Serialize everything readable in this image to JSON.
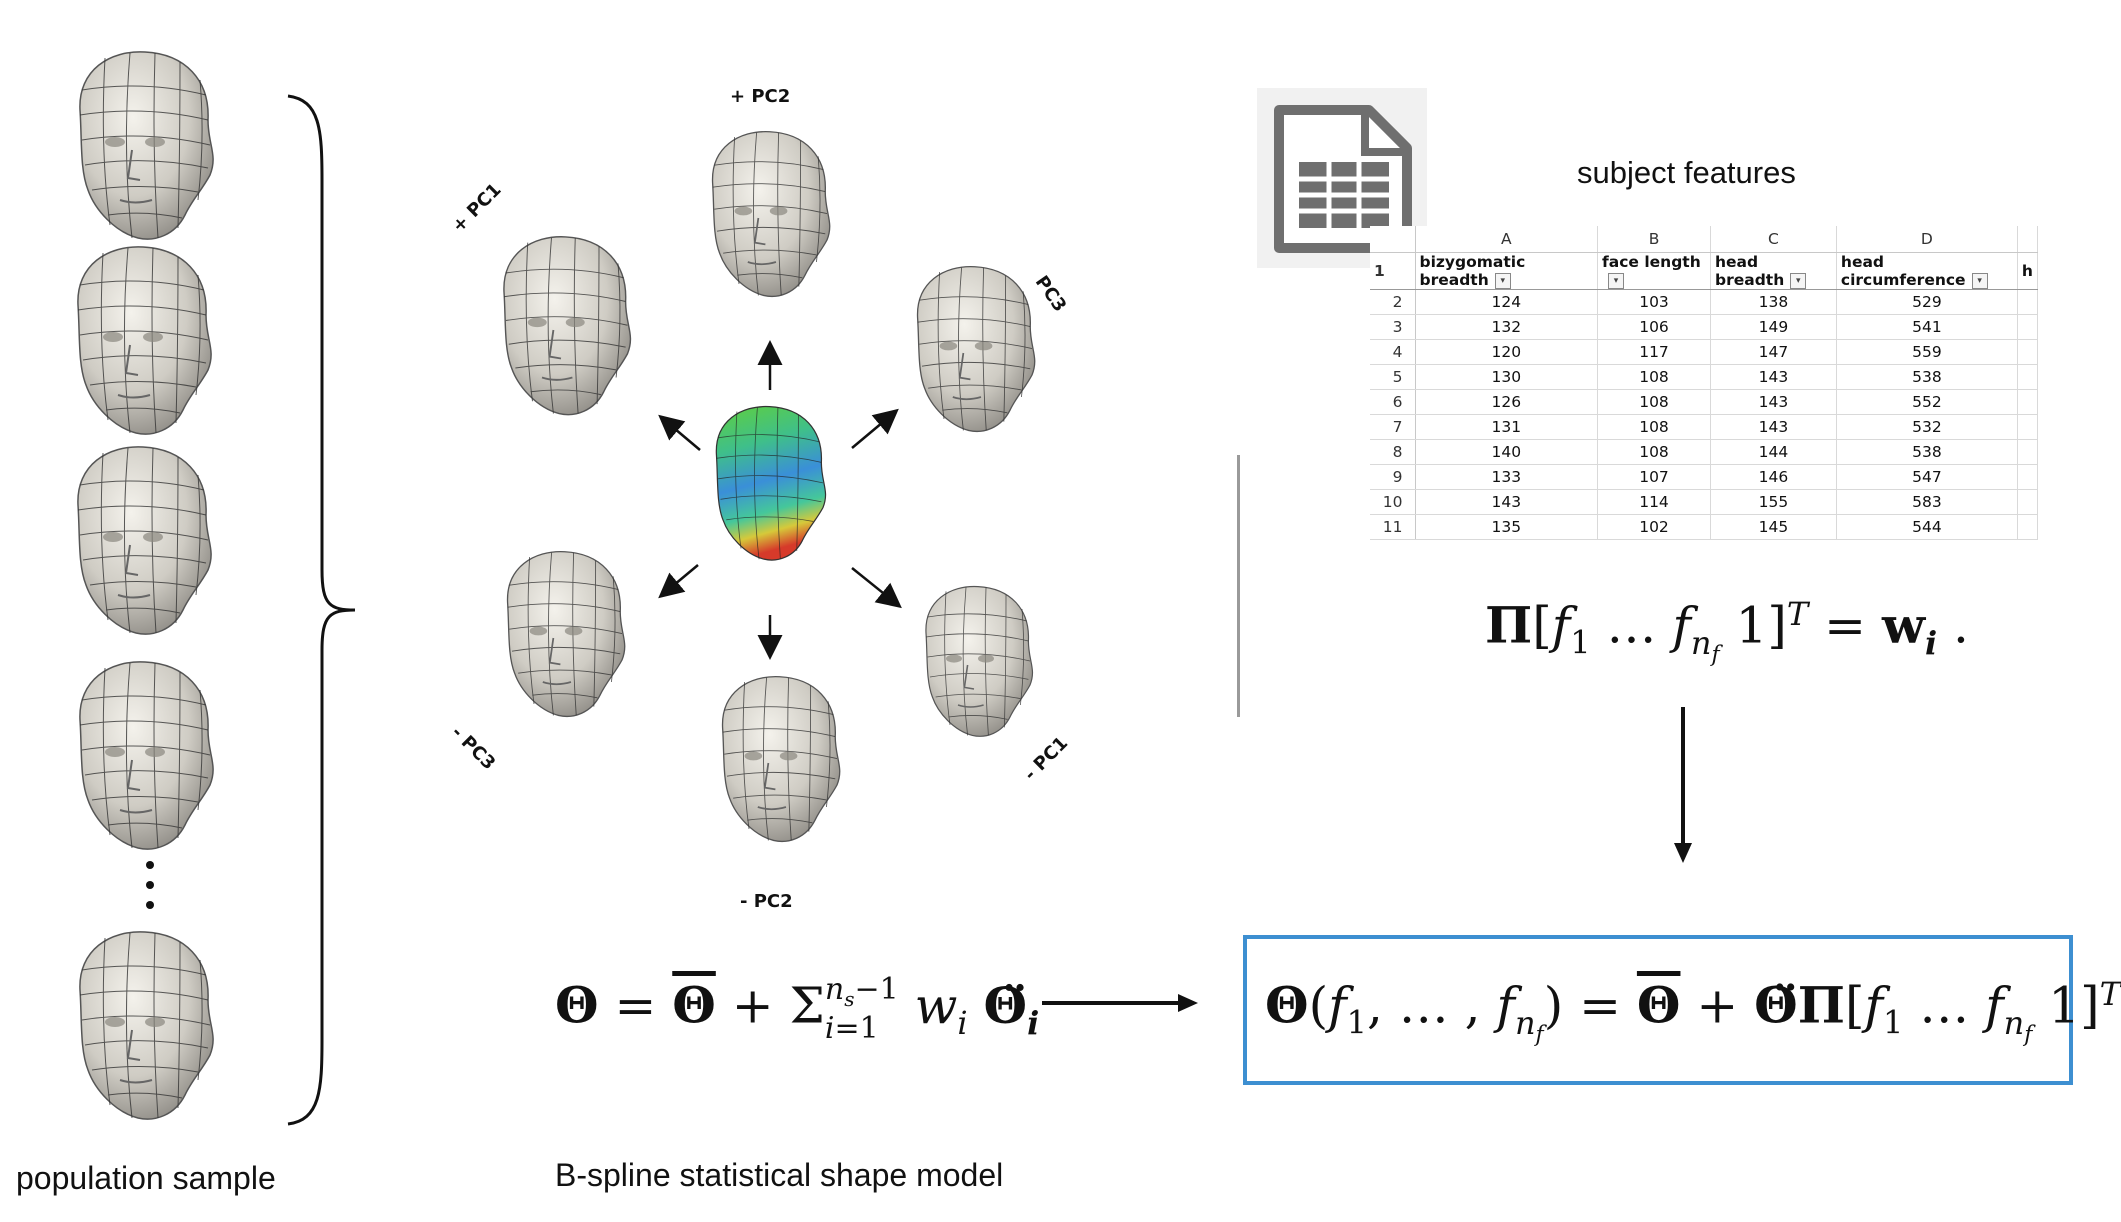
{
  "captions": {
    "population": "population sample",
    "model": "B-spline statistical shape model"
  },
  "pc_labels": {
    "plus_pc2": "+ PC2",
    "minus_pc2": "- PC2",
    "plus_pc1": "+ PC1",
    "minus_pc1": "- PC1",
    "plus_pc3": "PC3",
    "minus_pc3": "- PC3"
  },
  "features": {
    "title": "subject features",
    "icon": "spreadsheet-icon",
    "col_letters": [
      "A",
      "B",
      "C",
      "D"
    ],
    "headers": [
      "bizygomatic breadth",
      "face length",
      "head breadth",
      "head circumference",
      "h"
    ],
    "header_row_num": "1",
    "rows": [
      {
        "n": "2",
        "v": [
          "124",
          "103",
          "138",
          "529"
        ]
      },
      {
        "n": "3",
        "v": [
          "132",
          "106",
          "149",
          "541"
        ]
      },
      {
        "n": "4",
        "v": [
          "120",
          "117",
          "147",
          "559"
        ]
      },
      {
        "n": "5",
        "v": [
          "130",
          "108",
          "143",
          "538"
        ]
      },
      {
        "n": "6",
        "v": [
          "126",
          "108",
          "143",
          "552"
        ]
      },
      {
        "n": "7",
        "v": [
          "131",
          "108",
          "143",
          "532"
        ]
      },
      {
        "n": "8",
        "v": [
          "140",
          "108",
          "144",
          "538"
        ]
      },
      {
        "n": "9",
        "v": [
          "133",
          "107",
          "146",
          "547"
        ]
      },
      {
        "n": "10",
        "v": [
          "143",
          "114",
          "155",
          "583"
        ]
      },
      {
        "n": "11",
        "v": [
          "135",
          "102",
          "145",
          "544"
        ]
      }
    ]
  },
  "equations": {
    "ssm": "Θ = Θ̄ + Σ_{i=1}^{n_s−1} w_i Θ̈_i",
    "regression": "Π[f_1 … f_{n_f} 1]^T = w_i .",
    "final": "Θ(f_1, …, f_{n_f}) = Θ̄ + Θ̈Π[f_1 … f_{n_f} 1]^T"
  },
  "colors": {
    "box_border": "#3d8fd1",
    "head_fill": "#c9c6bf"
  }
}
